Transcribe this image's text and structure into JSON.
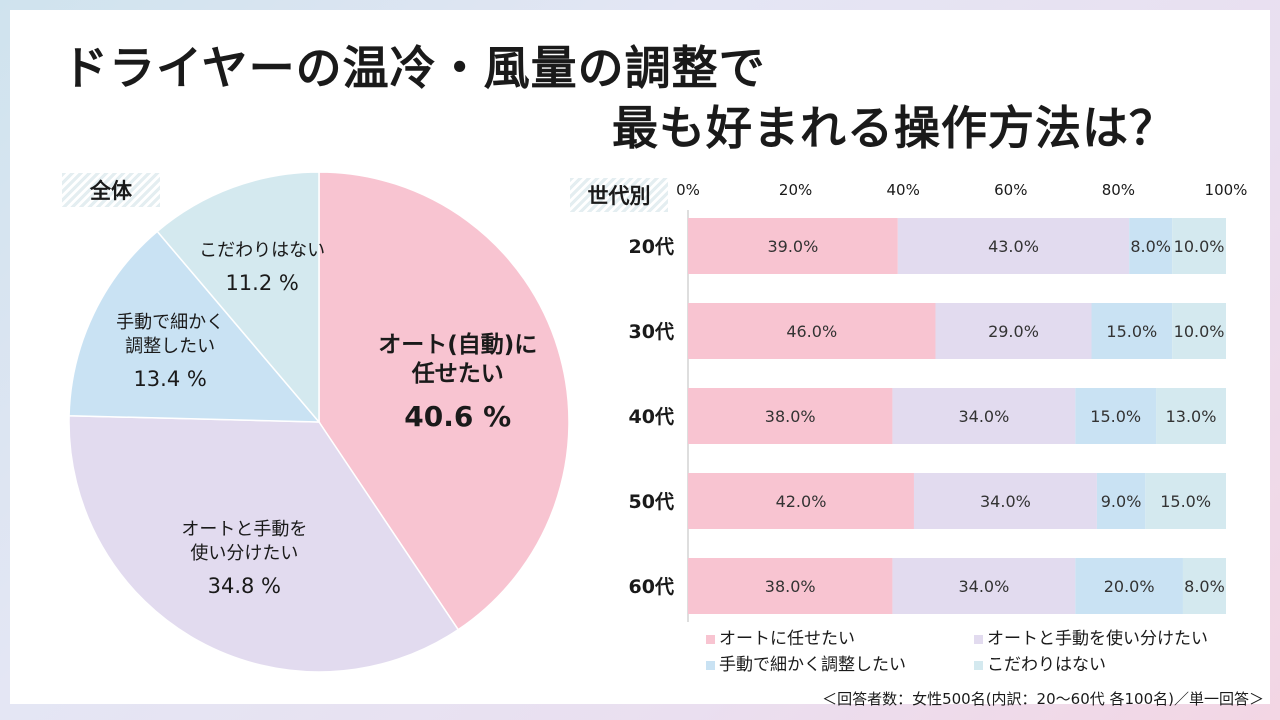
{
  "title": {
    "line1": "ドライヤーの温冷・風量の調整で",
    "line2": "最も好まれる操作方法は？"
  },
  "colors": {
    "auto": "#f8c4d1",
    "mix": "#e2dbef",
    "manual": "#c9e2f3",
    "none": "#d4e9ef"
  },
  "chart_data": [
    {
      "type": "pie",
      "title": "全体",
      "slices": [
        {
          "label_lines": [
            "オート(自動)に",
            "任せたい"
          ],
          "value": 40.6,
          "value_label": "40.6 %",
          "color": "#f8c4d1"
        },
        {
          "label_lines": [
            "オートと手動を",
            "使い分けたい"
          ],
          "value": 34.8,
          "value_label": "34.8 %",
          "color": "#e2dbef"
        },
        {
          "label_lines": [
            "手動で細かく",
            "調整したい"
          ],
          "value": 13.4,
          "value_label": "13.4 %",
          "color": "#c9e2f3"
        },
        {
          "label_lines": [
            "こだわりはない"
          ],
          "value": 11.2,
          "value_label": "11.2 %",
          "color": "#d4e9ef"
        }
      ]
    },
    {
      "type": "bar",
      "orientation": "horizontal",
      "stacked": true,
      "title": "世代別",
      "categories": [
        "20代",
        "30代",
        "40代",
        "50代",
        "60代"
      ],
      "x_ticks": [
        "0%",
        "20%",
        "40%",
        "60%",
        "80%",
        "100%"
      ],
      "xlim": [
        0,
        100
      ],
      "series": [
        {
          "name": "オートに任せたい",
          "values": [
            39.0,
            46.0,
            38.0,
            42.0,
            38.0
          ],
          "labels": [
            "39.0%",
            "46.0%",
            "38.0%",
            "42.0%",
            "38.0%"
          ],
          "color": "#f8c4d1"
        },
        {
          "name": "オートと手動を使い分けたい",
          "values": [
            43.0,
            29.0,
            34.0,
            34.0,
            34.0
          ],
          "labels": [
            "43.0%",
            "29.0%",
            "34.0%",
            "34.0%",
            "34.0%"
          ],
          "color": "#e2dbef"
        },
        {
          "name": "手動で細かく調整したい",
          "values": [
            8.0,
            15.0,
            15.0,
            9.0,
            20.0
          ],
          "labels": [
            "8.0%",
            "15.0%",
            "15.0%",
            "9.0%",
            "20.0%"
          ],
          "color": "#c9e2f3"
        },
        {
          "name": "こだわりはない",
          "values": [
            10.0,
            10.0,
            13.0,
            15.0,
            8.0
          ],
          "labels": [
            "10.0%",
            "10.0%",
            "13.0%",
            "15.0%",
            "8.0%"
          ],
          "color": "#d4e9ef"
        }
      ],
      "legend_position": "bottom"
    }
  ],
  "footnote": "＜回答者数：女性500名(内訳：20～60代 各100名)／単一回答＞"
}
